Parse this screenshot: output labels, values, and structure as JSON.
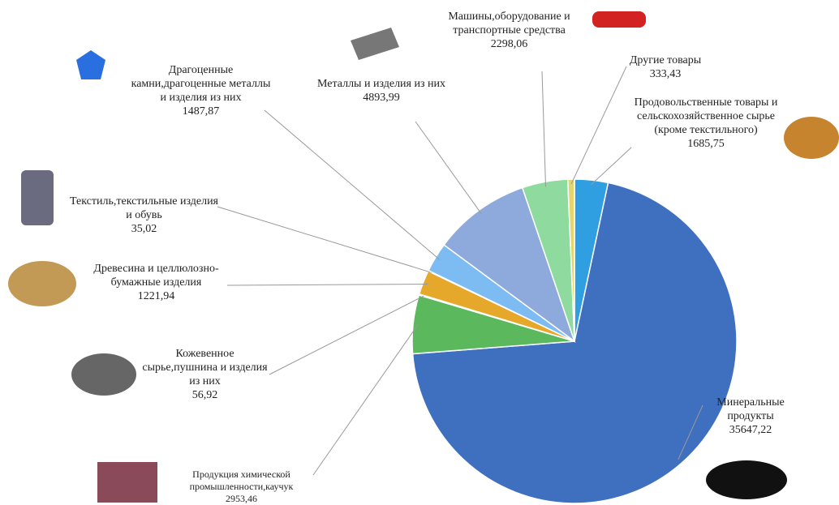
{
  "chart_data": {
    "type": "pie",
    "categories": [
      "Продовольственные товары и сельскохозяйственное сырье (кроме текстильного)",
      "Минеральные продукты",
      "Продукция химической промышленности,каучук",
      "Кожевенное сырье,пушнина и изделия из них",
      "Древесина и целлюлозно-бумажные изделия",
      "Текстиль,текстильные изделия и обувь",
      "Драгоценные камни,драгоценные металлы и изделия из них",
      "Металлы и изделия из них",
      "Машины,оборудование и транспортные средства",
      "Другие товары"
    ],
    "values": [
      1685.75,
      35647.22,
      2953.46,
      56.92,
      1221.94,
      35.02,
      1487.87,
      4893.99,
      2298.06,
      333.43
    ],
    "value_labels": [
      "1685,75",
      "35647,22",
      "2953,46",
      "56,92",
      "1221,94",
      "35,02",
      "1487,87",
      "4893,99",
      "2298,06",
      "333,43"
    ],
    "colors": [
      "#2f9fe2",
      "#3f6fbf",
      "#5cb85c",
      "#7a6fb0",
      "#e5a82b",
      "#5aa3d8",
      "#7cbcf2",
      "#8eaadc",
      "#8fdb9f",
      "#e4d66a"
    ]
  }
}
